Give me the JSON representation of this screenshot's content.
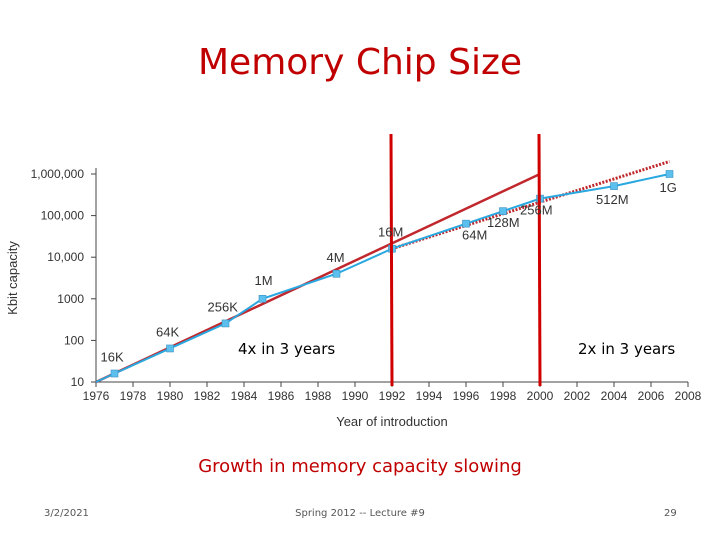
{
  "slide": {
    "title": "Memory Chip Size",
    "caption": "Growth in memory capacity slowing",
    "footer_date": "3/2/2021",
    "footer_course": "Spring 2012 -- Lecture #9",
    "footer_page": "29"
  },
  "colors": {
    "title": "#c00000",
    "series": "#29a8e0",
    "marker": "#5bc0ee",
    "trend": "#c0282d",
    "divider": "#d00000"
  },
  "chart_data": {
    "type": "line",
    "xlabel": "Year of introduction",
    "ylabel": "Kbit capacity",
    "xlim": [
      1976,
      2008
    ],
    "ylim": [
      10,
      1000000
    ],
    "yscale": "log",
    "x_ticks": [
      1976,
      1978,
      1980,
      1982,
      1984,
      1986,
      1988,
      1990,
      1992,
      1994,
      1996,
      1998,
      2000,
      2002,
      2004,
      2006,
      2008
    ],
    "y_ticks": [
      {
        "value": 10,
        "label": "10"
      },
      {
        "value": 100,
        "label": "100"
      },
      {
        "value": 1000,
        "label": "1000"
      },
      {
        "value": 10000,
        "label": "10,000"
      },
      {
        "value": 100000,
        "label": "100,000"
      },
      {
        "value": 1000000,
        "label": "1,000,000"
      }
    ],
    "series": [
      {
        "x": [
          1976,
          1977,
          1980,
          1983,
          1985,
          1989,
          1992,
          1996,
          1998,
          2000,
          2004,
          2007
        ],
        "y": [
          10,
          16,
          64,
          256,
          1000,
          4000,
          16000,
          64000,
          128000,
          256000,
          512000,
          1000000
        ]
      }
    ],
    "point_labels": [
      {
        "text": "16K",
        "x": 1977,
        "y": 16
      },
      {
        "text": "64K",
        "x": 1980,
        "y": 64
      },
      {
        "text": "256K",
        "x": 1983,
        "y": 256
      },
      {
        "text": "1M",
        "x": 1985,
        "y": 1000
      },
      {
        "text": "4M",
        "x": 1989,
        "y": 4000
      },
      {
        "text": "16M",
        "x": 1992,
        "y": 16000
      },
      {
        "text": "64M",
        "x": 1996,
        "y": 64000
      },
      {
        "text": "128M",
        "x": 1998,
        "y": 128000
      },
      {
        "text": "256M",
        "x": 2000,
        "y": 256000
      },
      {
        "text": "512M",
        "x": 2004,
        "y": 512000
      },
      {
        "text": "1G",
        "x": 2007,
        "y": 1000000
      }
    ],
    "trend_lines": [
      {
        "x": [
          1976,
          2000
        ],
        "y": [
          10,
          1000000
        ],
        "style": "solid"
      },
      {
        "x": [
          1992,
          2007
        ],
        "y": [
          16000,
          2000000
        ],
        "style": "dotted"
      }
    ],
    "dividers": [
      1992,
      2000
    ],
    "annotations": [
      {
        "text": "4x in 3 years"
      },
      {
        "text": "2x in 3 years"
      }
    ],
    "grid": false
  }
}
